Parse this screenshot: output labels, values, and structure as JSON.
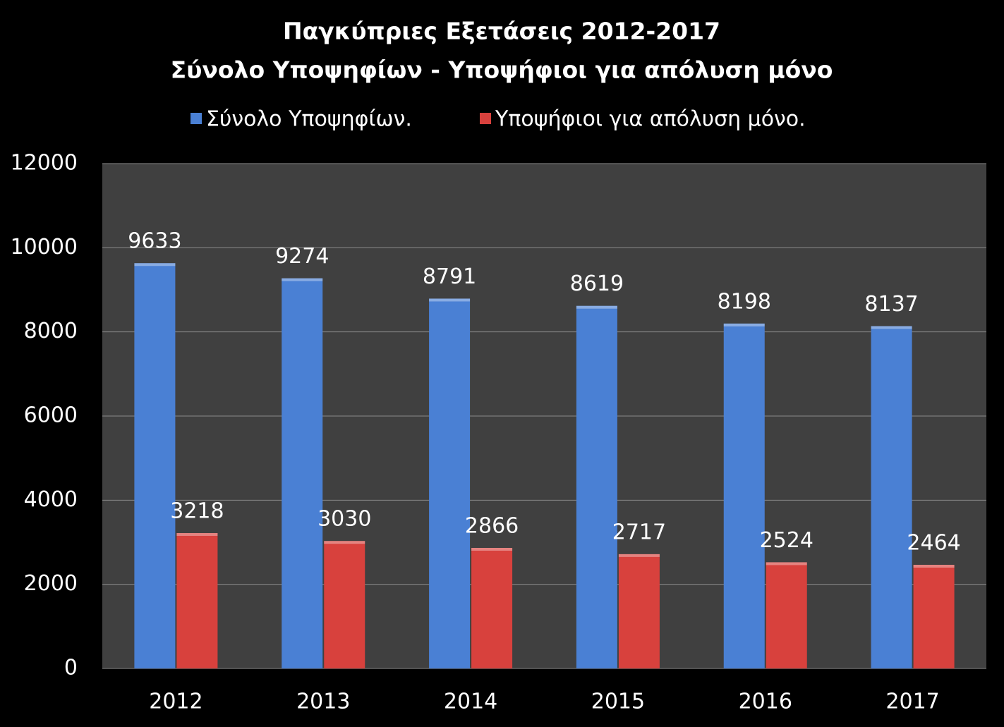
{
  "chart_data": {
    "type": "bar",
    "title": "Παγκύπριες Εξετάσεις 2012-2017",
    "subtitle": "Σύνολο Υποψηφίων - Υποψήφιοι για απόλυση μόνο",
    "categories": [
      "2012",
      "2013",
      "2014",
      "2015",
      "2016",
      "2017"
    ],
    "series": [
      {
        "name": "Σύνολο Υποψηφίων.",
        "color": "#4a80d4",
        "values": [
          9633,
          9274,
          8791,
          8619,
          8198,
          8137
        ]
      },
      {
        "name": "Υποψήφιοι για απόλυση μόνο.",
        "color": "#d8413d",
        "values": [
          3218,
          3030,
          2866,
          2717,
          2524,
          2464
        ]
      }
    ],
    "ylim": [
      0,
      12000
    ],
    "yticks": [
      0,
      2000,
      4000,
      6000,
      8000,
      10000,
      12000
    ],
    "grid": true,
    "legend": "top"
  }
}
